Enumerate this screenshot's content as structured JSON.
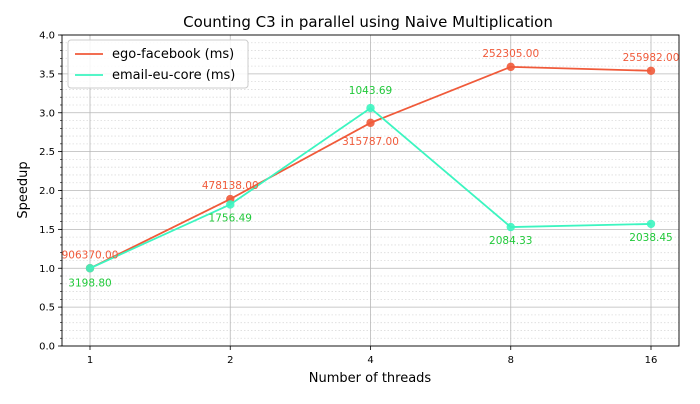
{
  "chart_data": {
    "type": "line",
    "title": "Counting C3 in parallel using Naive Multiplication",
    "xlabel": "Number of threads",
    "ylabel": "Speedup",
    "categories": [
      "1",
      "2",
      "4",
      "8",
      "16"
    ],
    "ylim": [
      0.0,
      4.0
    ],
    "yticks": [
      "0.0",
      "0.5",
      "1.0",
      "1.5",
      "2.0",
      "2.5",
      "3.0",
      "3.5",
      "4.0"
    ],
    "grid": true,
    "legend_position": "top-left",
    "series": [
      {
        "name": "ego-facebook (ms)",
        "color": "#f05a3a",
        "values": [
          1.0,
          1.89,
          2.87,
          3.59,
          3.54
        ],
        "labels": [
          "906370.00",
          "478138.00",
          "315787.00",
          "252305.00",
          "255982.00"
        ]
      },
      {
        "name": "email-eu-core (ms)",
        "color": "#3cf5c0",
        "values": [
          1.0,
          1.82,
          3.06,
          1.53,
          1.57
        ],
        "labels": [
          "3198.80",
          "1756.49",
          "1043.69",
          "2084.33",
          "2038.45"
        ]
      }
    ]
  }
}
